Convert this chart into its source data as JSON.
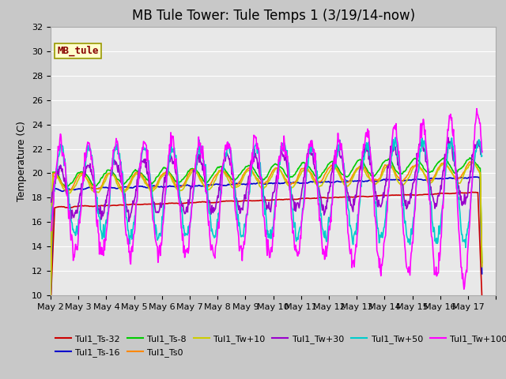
{
  "title": "MB Tule Tower: Tule Temps 1 (3/19/14-now)",
  "ylabel": "Temperature (C)",
  "ylim": [
    10,
    32
  ],
  "yticks": [
    10,
    12,
    14,
    16,
    18,
    20,
    22,
    24,
    26,
    28,
    30,
    32
  ],
  "xlim": [
    1.0,
    16.5
  ],
  "x_ticks": [
    1,
    2,
    3,
    4,
    5,
    6,
    7,
    8,
    9,
    10,
    11,
    12,
    13,
    14,
    15,
    16,
    17
  ],
  "x_tick_labels": [
    "May 2",
    "May 3",
    "May 4",
    "May 5",
    "May 6",
    "May 7",
    "May 8",
    "May 9",
    "May 10",
    "May 11",
    "May 12",
    "May 13",
    "May 14",
    "May 15",
    "May 16",
    "May 17",
    ""
  ],
  "series_order": [
    "Tul1_Ts-32",
    "Tul1_Ts-16",
    "Tul1_Ts-8",
    "Tul1_Ts0",
    "Tul1_Tw+10",
    "Tul1_Tw+30",
    "Tul1_Tw+50",
    "Tul1_Tw+100"
  ],
  "series_colors": {
    "Tul1_Ts-32": "#cc0000",
    "Tul1_Ts-16": "#0000cc",
    "Tul1_Ts-8": "#00cc00",
    "Tul1_Ts0": "#ff8800",
    "Tul1_Tw+10": "#cccc00",
    "Tul1_Tw+30": "#9900cc",
    "Tul1_Tw+50": "#00cccc",
    "Tul1_Tw+100": "#ff00ff"
  },
  "lw": 1.2,
  "plot_bg": "#e8e8e8",
  "fig_bg": "#c8c8c8",
  "grid_color": "#ffffff",
  "legend_box": {
    "text": "MB_tule",
    "facecolor": "#ffffcc",
    "edgecolor": "#999900",
    "text_color": "#880000",
    "fontsize": 9,
    "fontweight": "bold"
  },
  "title_fontsize": 12,
  "axis_label_fontsize": 9,
  "tick_fontsize": 8,
  "legend_fontsize": 8
}
